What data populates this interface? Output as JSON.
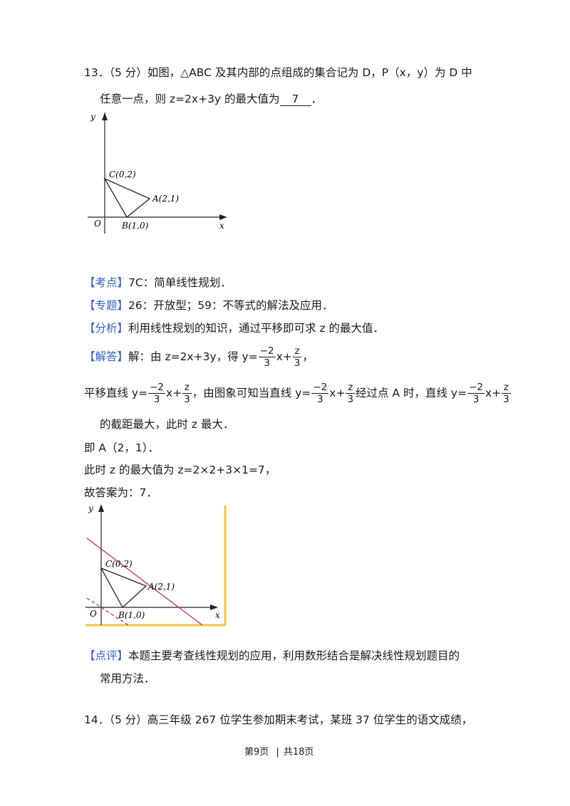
{
  "q13": {
    "number": "13．",
    "score": "（5 分）",
    "line1": "如图，△ABC 及其内部的点组成的集合记为 D，P（x，y）为 D 中",
    "line2_pre": "任意一点，则 z=2x+3y 的最大值为",
    "answer": "7",
    "line2_post": "．"
  },
  "fig1": {
    "y_label": "y",
    "x_label": "x",
    "origin_label": "O",
    "c_label": "C(0,2)",
    "a_label": "A(2,1)",
    "b_label": "B(1,0)"
  },
  "kaodian": {
    "tag": "【考点】",
    "text": "7C：简单线性规划．"
  },
  "zhuanti": {
    "tag": "【专题】",
    "text": "26：开放型；59：不等式的解法及应用．"
  },
  "fenxi": {
    "tag": "【分析】",
    "text": "利用线性规划的知识，通过平移即可求 z 的最大值．"
  },
  "jieda": {
    "tag": "【解答】",
    "text_pre": "解：由 z=2x+3y，得 y=",
    "neg": "−",
    "frac_num": "2",
    "frac_den": "3",
    "x": "x+",
    "z_num": "z",
    "z_den": "3",
    "end": "，"
  },
  "pingyi": {
    "p1": "平移直线 y=",
    "p2": "，由图象可知当直线 y=",
    "p3": "经过点 A 时，直线 y=",
    "line2": "的截距最大，此时 z 最大．"
  },
  "ji": "即 A（2，1）．",
  "cishi": "此时 z 的最大值为 z=2×2+3×1=7，",
  "guda": "故答案为：7．",
  "fig2": {
    "y_label": "y",
    "x_label": "x",
    "origin_label": "O",
    "c_label": "C(0,2)",
    "a_label": "A(2,1)",
    "b_label": "B(1,0)",
    "border_color": "#f2c744",
    "line_color": "#c0336b"
  },
  "dianping": {
    "tag": "【点评】",
    "line1": "本题主要考查线性规划的应用，利用数形结合是解决线性规划题目的",
    "line2": "常用方法．"
  },
  "q14": {
    "number": "14．",
    "score": "（5 分）",
    "text": "高三年级 267 位学生参加期末考试，某班 37 位学生的语文成绩，"
  },
  "footer": {
    "page": "第9页",
    "sep": "|",
    "total": "共18页"
  }
}
